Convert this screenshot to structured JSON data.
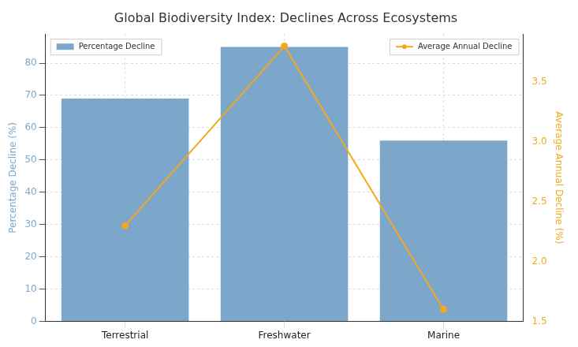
{
  "chart_data": {
    "type": "bar",
    "title": "Global Biodiversity Index: Declines Across Ecosystems",
    "categories": [
      "Terrestrial",
      "Freshwater",
      "Marine"
    ],
    "series": [
      {
        "name": "Percentage Decline",
        "type": "bar",
        "color": "#7da7ca",
        "values": [
          69,
          85,
          56
        ],
        "legend": "upper left"
      },
      {
        "name": "Average Annual Decline",
        "type": "line",
        "color": "#f2a91e",
        "marker": "circle",
        "axis": "y2",
        "values": [
          2.3,
          3.8,
          1.6
        ],
        "legend": "upper right"
      }
    ],
    "y_label": "Percentage Decline (%)",
    "y2_label": "Average Annual Decline (%)",
    "ylim": [
      0,
      89
    ],
    "yticks": [
      0,
      10,
      20,
      30,
      40,
      50,
      60,
      70,
      80
    ],
    "y2lim": [
      1.5,
      3.9
    ],
    "y2ticks": [
      1.5,
      {
        "value": 2,
        "label": "2.0"
      },
      2.5,
      {
        "value": 3,
        "label": "3.0"
      },
      3.5
    ],
    "grid": true
  }
}
